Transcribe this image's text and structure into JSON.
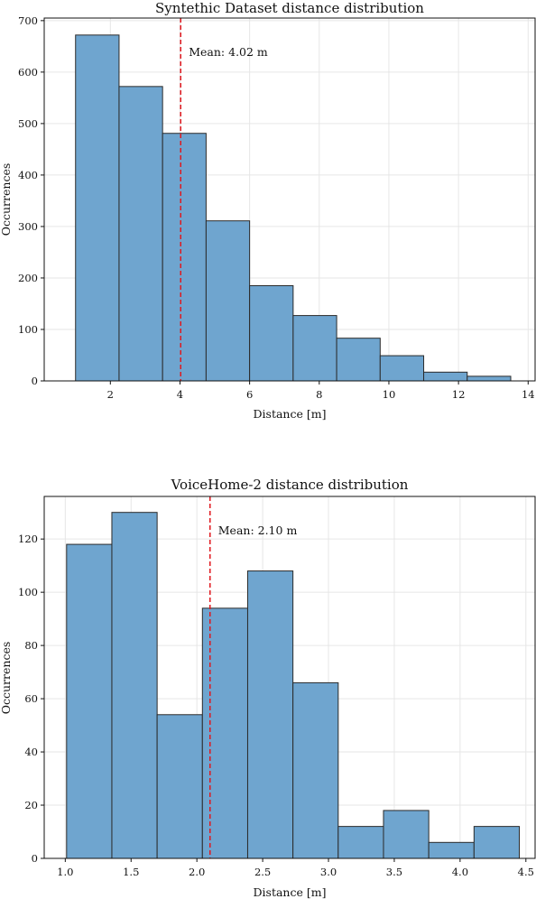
{
  "chart_data": [
    {
      "type": "bar",
      "title": "Syntethic Dataset distance distribution",
      "xlabel": "Distance [m]",
      "ylabel": "Occurrences",
      "bin_edges": [
        1.0,
        2.25,
        3.5,
        4.75,
        6.0,
        7.25,
        8.5,
        9.75,
        11.0,
        12.25,
        13.5
      ],
      "values": [
        672,
        572,
        481,
        311,
        185,
        127,
        83,
        49,
        17,
        9
      ],
      "xlim": [
        0.1,
        14.2
      ],
      "ylim": [
        0,
        705
      ],
      "xticks": [
        2,
        4,
        6,
        8,
        10,
        12,
        14
      ],
      "xtick_labels": [
        "2",
        "4",
        "6",
        "8",
        "10",
        "12",
        "14"
      ],
      "yticks": [
        0,
        100,
        200,
        300,
        400,
        500,
        600,
        700
      ],
      "ytick_labels": [
        "0",
        "100",
        "200",
        "300",
        "400",
        "500",
        "600",
        "700"
      ],
      "mean": 4.02,
      "mean_label": "Mean: 4.02 m",
      "bar_color": "#6fa5cf",
      "mean_color": "#e0191f",
      "grid": true
    },
    {
      "type": "bar",
      "title": "VoiceHome-2 distance distribution",
      "xlabel": "Distance [m]",
      "ylabel": "Occurrences",
      "bin_edges": [
        1.01,
        1.354,
        1.698,
        2.042,
        2.386,
        2.73,
        3.074,
        3.418,
        3.762,
        4.106,
        4.45
      ],
      "values": [
        118,
        130,
        54,
        94,
        108,
        66,
        12,
        18,
        6,
        12
      ],
      "xlim": [
        0.84,
        4.57
      ],
      "ylim": [
        0,
        136
      ],
      "xticks": [
        1.0,
        1.5,
        2.0,
        2.5,
        3.0,
        3.5,
        4.0,
        4.5
      ],
      "xtick_labels": [
        "1.0",
        "1.5",
        "2.0",
        "2.5",
        "3.0",
        "3.5",
        "4.0",
        "4.5"
      ],
      "yticks": [
        0,
        20,
        40,
        60,
        80,
        100,
        120
      ],
      "ytick_labels": [
        "0",
        "20",
        "40",
        "60",
        "80",
        "100",
        "120"
      ],
      "mean": 2.1,
      "mean_label": "Mean: 2.10 m",
      "bar_color": "#6fa5cf",
      "mean_color": "#e0191f",
      "grid": true
    }
  ]
}
